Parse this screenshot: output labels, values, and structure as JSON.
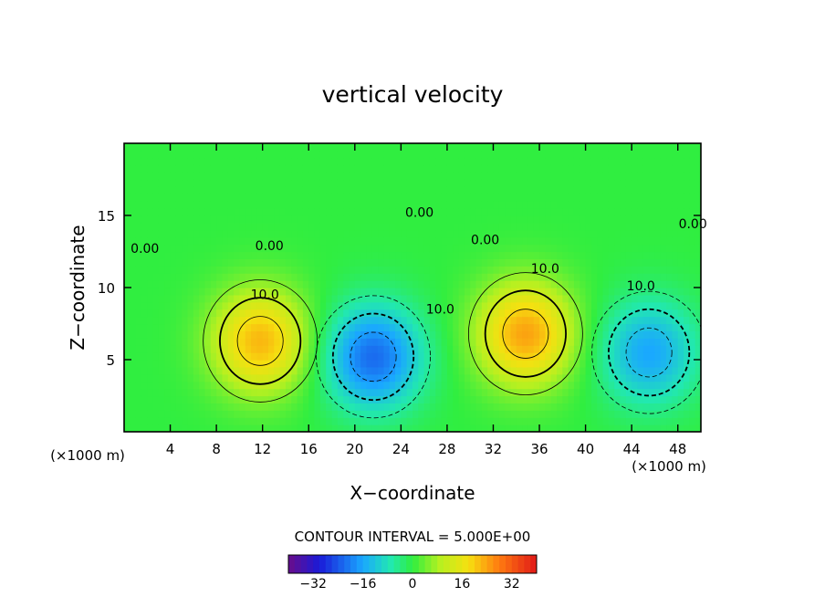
{
  "chart_data": {
    "type": "heatmap",
    "title": "vertical velocity",
    "xlabel": "X−coordinate",
    "ylabel": "Z−coordinate",
    "x_unit": "(×1000 m)",
    "y_unit": "(×1000 m)",
    "xlim": [
      0,
      50
    ],
    "ylim": [
      0,
      20
    ],
    "x_ticks": [
      4,
      8,
      12,
      16,
      20,
      24,
      28,
      32,
      36,
      40,
      44,
      48
    ],
    "y_ticks": [
      5,
      10,
      15
    ],
    "contour_interval_label": "CONTOUR INTERVAL = 5.000E+00",
    "colorbar": {
      "range": [
        -40,
        40
      ],
      "ticks": [
        -32,
        -16,
        0,
        16,
        32
      ],
      "tick_labels": [
        "−32",
        "−16",
        "0",
        "16",
        "32"
      ]
    },
    "contour_labels": [
      {
        "text": "0.00",
        "x": 1.8,
        "y": 12.4
      },
      {
        "text": "0.00",
        "x": 12.6,
        "y": 12.6
      },
      {
        "text": "10.0",
        "x": 12.2,
        "y": 9.2
      },
      {
        "text": "0.00",
        "x": 25.6,
        "y": 14.9
      },
      {
        "text": "0.00",
        "x": 31.3,
        "y": 13.0
      },
      {
        "text": "10.0",
        "x": 36.5,
        "y": 11.0
      },
      {
        "text": "10.0",
        "x": 27.4,
        "y": 8.2
      },
      {
        "text": "10.0",
        "x": 44.8,
        "y": 9.8
      },
      {
        "text": "0.00",
        "x": 49.3,
        "y": 14.1
      }
    ],
    "field_features": [
      {
        "kind": "updraft",
        "center": [
          11.8,
          6.3
        ],
        "peak": 22
      },
      {
        "kind": "downdraft",
        "center": [
          21.6,
          5.2
        ],
        "peak": -22
      },
      {
        "kind": "updraft",
        "center": [
          34.8,
          6.8
        ],
        "peak": 24
      },
      {
        "kind": "downdraft",
        "center": [
          45.5,
          5.5
        ],
        "peak": -16
      }
    ]
  }
}
